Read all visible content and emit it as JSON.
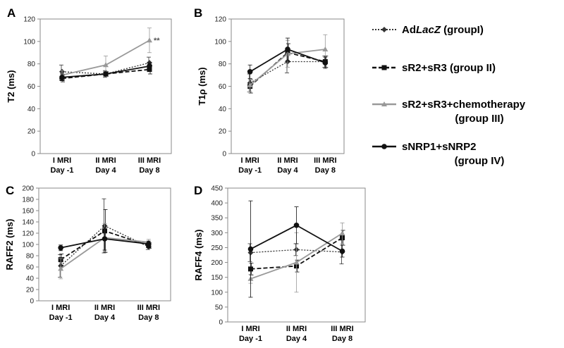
{
  "x_groups": [
    [
      "I MRI",
      "Day -1"
    ],
    [
      "II MRI",
      "Day 4"
    ],
    [
      "III MRI",
      "Day 8"
    ]
  ],
  "legend": [
    {
      "key": "g1",
      "parts": [
        {
          "t": "Ad",
          "i": false
        },
        {
          "t": "LacZ",
          "i": true
        },
        {
          "t": " (groupI)",
          "i": false
        }
      ]
    },
    {
      "key": "g2",
      "parts": [
        {
          "t": "sR2+sR3 (group II)",
          "i": false
        }
      ]
    },
    {
      "key": "g3",
      "lines": [
        "sR2+sR3+chemotherapy",
        "(group III)"
      ]
    },
    {
      "key": "g4",
      "lines": [
        "sNRP1+sNRP2",
        "(group IV)"
      ]
    }
  ],
  "styles": {
    "g1": {
      "color": "#333333",
      "dash": "2,2",
      "width": 1.3,
      "marker": "diamond"
    },
    "g2": {
      "color": "#111111",
      "dash": "6,3",
      "width": 1.8,
      "marker": "square"
    },
    "g3": {
      "color": "#999999",
      "dash": "",
      "width": 1.8,
      "marker": "triangle"
    },
    "g4": {
      "color": "#111111",
      "dash": "",
      "width": 1.8,
      "marker": "circle"
    }
  },
  "chart_data": [
    {
      "panel": "A",
      "type": "line",
      "ylabel": "T2 (ms)",
      "ylim": [
        0,
        120
      ],
      "ytick_step": 20,
      "annotations": [
        {
          "text": "**",
          "series": "g3",
          "index": 2
        }
      ],
      "series": [
        {
          "key": "g1",
          "values": [
            73,
            71,
            81
          ],
          "err": [
            6,
            3,
            5
          ]
        },
        {
          "key": "g2",
          "values": [
            67,
            71,
            75
          ],
          "err": [
            3,
            2,
            4
          ]
        },
        {
          "key": "g3",
          "values": [
            70,
            79,
            101
          ],
          "err": [
            4,
            8,
            11
          ]
        },
        {
          "key": "g4",
          "values": [
            68,
            71,
            78
          ],
          "err": [
            3,
            2,
            3
          ]
        }
      ]
    },
    {
      "panel": "B",
      "type": "line",
      "ylabel": "T1ρ (ms)",
      "ylim": [
        0,
        120
      ],
      "ytick_step": 20,
      "annotations": [],
      "series": [
        {
          "key": "g1",
          "values": [
            63,
            82,
            82
          ],
          "err": [
            8,
            10,
            5
          ]
        },
        {
          "key": "g2",
          "values": [
            60,
            90,
            82
          ],
          "err": [
            6,
            8,
            5
          ]
        },
        {
          "key": "g3",
          "values": [
            61,
            89,
            93
          ],
          "err": [
            6,
            12,
            13
          ]
        },
        {
          "key": "g4",
          "values": [
            73,
            93,
            81
          ],
          "err": [
            6,
            10,
            5
          ]
        }
      ]
    },
    {
      "panel": "C",
      "type": "line",
      "ylabel": "RAFF2 (ms)",
      "ylim": [
        0,
        200
      ],
      "ytick_step": 20,
      "annotations": [],
      "series": [
        {
          "key": "g1",
          "values": [
            62,
            133,
            96
          ],
          "err": [
            20,
            48,
            5
          ]
        },
        {
          "key": "g2",
          "values": [
            73,
            124,
            98
          ],
          "err": [
            10,
            38,
            5
          ]
        },
        {
          "key": "g3",
          "values": [
            57,
            112,
            104
          ],
          "err": [
            18,
            25,
            5
          ]
        },
        {
          "key": "g4",
          "values": [
            94,
            110,
            101
          ],
          "err": [
            5,
            20,
            5
          ]
        }
      ]
    },
    {
      "panel": "D",
      "type": "line",
      "ylabel": "RAFF4 (ms)",
      "ylim": [
        0,
        450
      ],
      "ytick_step": 50,
      "annotations": [],
      "series": [
        {
          "key": "g1",
          "values": [
            233,
            243,
            235
          ],
          "err": [
            30,
            20,
            40
          ]
        },
        {
          "key": "g2",
          "values": [
            178,
            188,
            283
          ],
          "err": [
            20,
            20,
            25
          ]
        },
        {
          "key": "g3",
          "values": [
            145,
            200,
            298
          ],
          "err": [
            15,
            100,
            35
          ]
        },
        {
          "key": "g4",
          "values": [
            245,
            325,
            238
          ],
          "err": [
            162,
            62,
            20
          ]
        }
      ]
    }
  ]
}
